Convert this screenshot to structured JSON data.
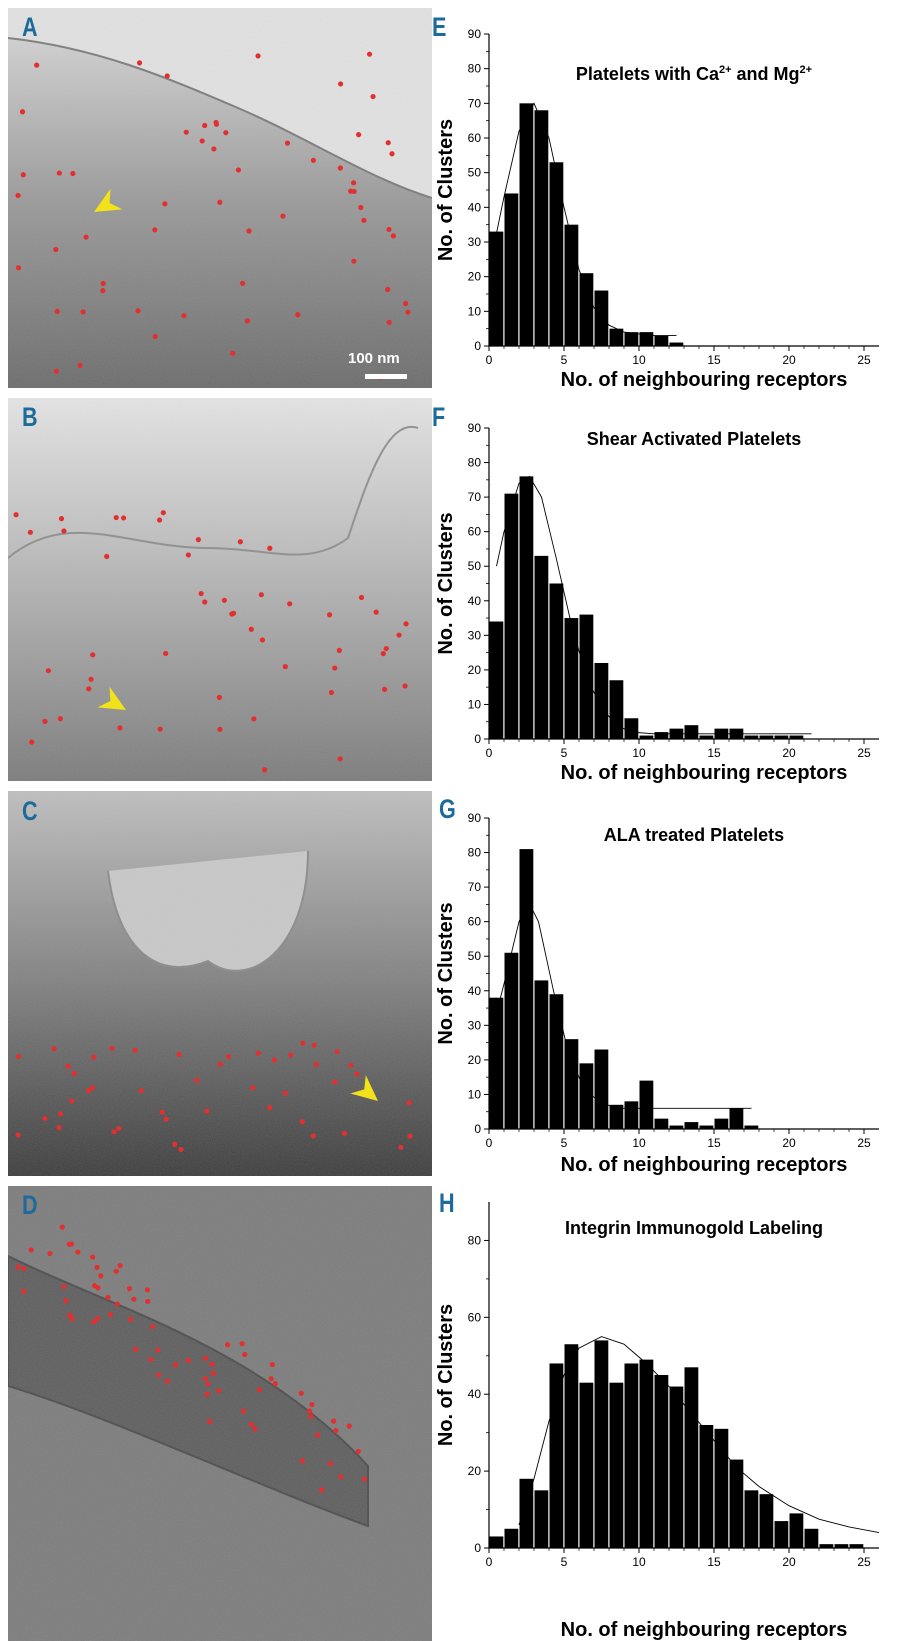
{
  "panel_labels": [
    "A",
    "B",
    "C",
    "D",
    "E",
    "F",
    "G",
    "H"
  ],
  "scale_bar_label": "100 nm",
  "colors": {
    "panel_letter": "#1d6b9a",
    "gold_marker": "#e23030",
    "arrowhead": "#f2e21a",
    "bars": "#000000"
  },
  "chart_data": [
    {
      "type": "bar",
      "panel": "E",
      "title": "Platelets with Ca2+ and Mg2+",
      "title_html": {
        "main": "Platelets with Ca",
        "sup1": "2+",
        "mid": " and Mg",
        "sup2": "2+"
      },
      "xlabel": "No. of neighbouring receptors",
      "ylabel": "No. of Clusters",
      "x": [
        0,
        1,
        2,
        3,
        4,
        5,
        6,
        7,
        8,
        9,
        10,
        11,
        12
      ],
      "values": [
        33,
        44,
        70,
        68,
        53,
        35,
        21,
        16,
        5,
        4,
        4,
        3,
        1
      ],
      "fit": [
        [
          0,
          22
        ],
        [
          1,
          43
        ],
        [
          2,
          62
        ],
        [
          3,
          70
        ],
        [
          4,
          60
        ],
        [
          5,
          40
        ],
        [
          6,
          22
        ],
        [
          7,
          11
        ],
        [
          8,
          6
        ],
        [
          9,
          4
        ],
        [
          10,
          3.5
        ],
        [
          11,
          3
        ],
        [
          12.5,
          3
        ]
      ],
      "xlim": [
        0,
        26
      ],
      "ylim": [
        0,
        90
      ],
      "xticks": [
        0,
        5,
        10,
        15,
        20,
        25
      ],
      "yticks": [
        0,
        10,
        20,
        30,
        40,
        50,
        60,
        70,
        80,
        90
      ]
    },
    {
      "type": "bar",
      "panel": "F",
      "title": "Shear Activated Platelets",
      "xlabel": "No. of neighbouring receptors",
      "ylabel": "No. of Clusters",
      "x": [
        0,
        1,
        2,
        3,
        4,
        5,
        6,
        7,
        8,
        9,
        10,
        11,
        12,
        13,
        14,
        15,
        16,
        17,
        18,
        19,
        20
      ],
      "values": [
        34,
        71,
        76,
        53,
        45,
        35,
        36,
        22,
        17,
        6,
        1,
        2,
        3,
        4,
        1,
        3,
        3,
        1,
        1,
        1,
        1
      ],
      "fit": [
        [
          0.5,
          50
        ],
        [
          1,
          60
        ],
        [
          2,
          74
        ],
        [
          2.7,
          76
        ],
        [
          3.5,
          70
        ],
        [
          4.5,
          52
        ],
        [
          5.5,
          33
        ],
        [
          6.5,
          18
        ],
        [
          7.5,
          9
        ],
        [
          8.5,
          4
        ],
        [
          9.5,
          2
        ],
        [
          11,
          1.5
        ],
        [
          21.5,
          1.5
        ]
      ],
      "xlim": [
        0,
        26
      ],
      "ylim": [
        0,
        90
      ],
      "xticks": [
        0,
        5,
        10,
        15,
        20,
        25
      ],
      "yticks": [
        0,
        10,
        20,
        30,
        40,
        50,
        60,
        70,
        80,
        90
      ]
    },
    {
      "type": "bar",
      "panel": "G",
      "title": "ALA treated Platelets",
      "xlabel": "No. of neighbouring receptors",
      "ylabel": "No. of Clusters",
      "x": [
        0,
        1,
        2,
        3,
        4,
        5,
        6,
        7,
        8,
        9,
        10,
        11,
        12,
        13,
        14,
        15,
        16,
        17
      ],
      "values": [
        38,
        51,
        81,
        43,
        39,
        26,
        19,
        23,
        7,
        8,
        14,
        3,
        1,
        2,
        1,
        3,
        6,
        1
      ],
      "fit": [
        [
          0,
          25
        ],
        [
          1,
          42
        ],
        [
          2,
          60
        ],
        [
          2.6,
          66
        ],
        [
          3.3,
          60
        ],
        [
          4.3,
          40
        ],
        [
          5.3,
          22
        ],
        [
          6.3,
          12
        ],
        [
          7.3,
          8
        ],
        [
          8.5,
          6
        ],
        [
          10,
          6
        ],
        [
          17.5,
          6
        ]
      ],
      "xlim": [
        0,
        26
      ],
      "ylim": [
        0,
        90
      ],
      "xticks": [
        0,
        5,
        10,
        15,
        20,
        25
      ],
      "yticks": [
        0,
        10,
        20,
        30,
        40,
        50,
        60,
        70,
        80,
        90
      ]
    },
    {
      "type": "bar",
      "panel": "H",
      "title": "Integrin Immunogold Labeling",
      "xlabel": "No. of neighbouring receptors",
      "ylabel": "No. of Clusters",
      "x": [
        0,
        1,
        2,
        3,
        4,
        5,
        6,
        7,
        8,
        9,
        10,
        11,
        12,
        13,
        14,
        15,
        16,
        17,
        18,
        19,
        20,
        21,
        22,
        23,
        24
      ],
      "values": [
        3,
        5,
        18,
        15,
        48,
        53,
        43,
        54,
        43,
        48,
        49,
        45,
        42,
        47,
        32,
        31,
        23,
        15,
        14,
        7,
        9,
        5,
        1,
        1,
        1
      ],
      "fit": [
        [
          2,
          6
        ],
        [
          3,
          18
        ],
        [
          4,
          33
        ],
        [
          5,
          45
        ],
        [
          6,
          52
        ],
        [
          7.5,
          55
        ],
        [
          9,
          53
        ],
        [
          10.5,
          48
        ],
        [
          12,
          42
        ],
        [
          13.5,
          35
        ],
        [
          15,
          28
        ],
        [
          16.5,
          21
        ],
        [
          18,
          16
        ],
        [
          20,
          11
        ],
        [
          22,
          7.5
        ],
        [
          24,
          5.5
        ],
        [
          26,
          4
        ]
      ],
      "xlim": [
        0,
        26
      ],
      "ylim": [
        0,
        90
      ],
      "xticks": [
        0,
        5,
        10,
        15,
        20,
        25
      ],
      "yticks": [
        0,
        20,
        40,
        60,
        80
      ]
    }
  ]
}
